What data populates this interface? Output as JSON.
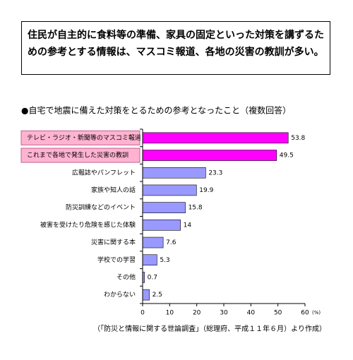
{
  "summary": "住民が自主的に食料等の準備、家具の固定といった対策を講ずるための参考とする情報は、マスコミ報道、各地の災害の教訓が多い。",
  "chart_data": {
    "type": "bar",
    "orientation": "horizontal",
    "title": "●自宅で地震に備えた対策をとるための参考となったこと（複数回答）",
    "categories": [
      "テレビ・ラジオ・新聞等のマスコミ報道",
      "これまで各地で発生した災害の教訓",
      "広報誌やパンフレット",
      "家族や知人の話",
      "防災訓練などのイベント",
      "被害を受けたり危険を感じた体験",
      "災害に関する本",
      "学校での学習",
      "その他",
      "わからない"
    ],
    "values": [
      53.8,
      49.5,
      23.3,
      19.9,
      15.8,
      14,
      7.6,
      5.3,
      0.7,
      2.5
    ],
    "color": "#9999ff",
    "colors": [
      "#ff00ff",
      "#ff00ff",
      "#9999ff",
      "#9999ff",
      "#9999ff",
      "#9999ff",
      "#9999ff",
      "#9999ff",
      "#9999ff",
      "#9999ff"
    ],
    "xlim": [
      0,
      60
    ],
    "xticks": [
      0,
      10,
      20,
      30,
      40,
      50,
      60
    ],
    "x_unit": "(%)",
    "source": "（「防災と情報に関する世論調査」（総理府、平成１１年６月）より作成）"
  }
}
